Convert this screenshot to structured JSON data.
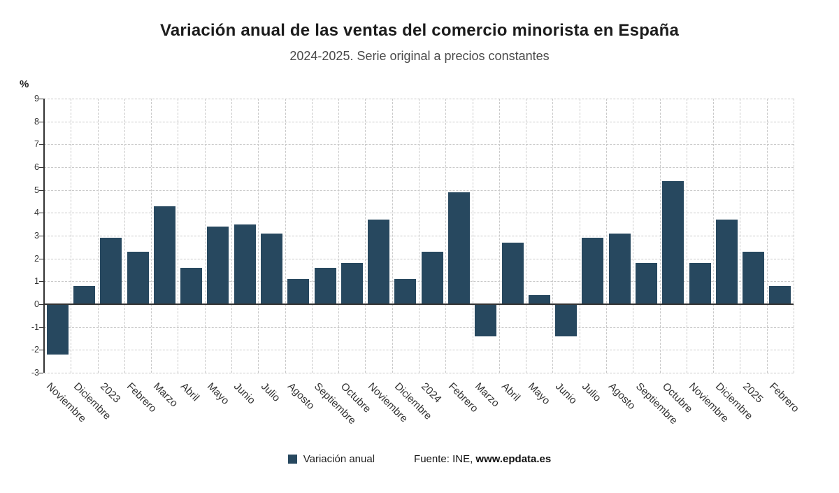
{
  "title": "Variación anual de las ventas del comercio minorista en España",
  "subtitle": "2024-2025. Serie original a precios constantes",
  "y_axis_unit": "%",
  "legend": {
    "label": "Variación anual"
  },
  "source": {
    "prefix": "Fuente: INE, ",
    "link": "www.epdata.es"
  },
  "colors": {
    "bar": "#27485f",
    "axis": "#333333",
    "grid": "#c9c9c9"
  },
  "chart_data": {
    "type": "bar",
    "title": "Variación anual de las ventas del comercio minorista en España",
    "subtitle": "2024-2025. Serie original a precios constantes",
    "xlabel": "",
    "ylabel": "%",
    "ylim": [
      -3,
      9
    ],
    "ytick_step": 1,
    "grid": "dashed",
    "legend_position": "bottom",
    "categories": [
      "Noviembre",
      "Diciembre",
      "2023",
      "Febrero",
      "Marzo",
      "Abril",
      "Mayo",
      "Junio",
      "Julio",
      "Agosto",
      "Septiembre",
      "Octubre",
      "Noviembre",
      "Diciembre",
      "2024",
      "Febrero",
      "Marzo",
      "Abril",
      "Mayo",
      "Junio",
      "Julio",
      "Agosto",
      "Septiembre",
      "Octubre",
      "Noviembre",
      "Diciembre",
      "2025",
      "Febrero"
    ],
    "values": [
      -2.2,
      0.8,
      2.9,
      2.3,
      4.3,
      1.6,
      3.4,
      3.5,
      3.1,
      1.1,
      1.6,
      1.8,
      3.7,
      1.1,
      2.3,
      4.9,
      -1.4,
      2.7,
      0.4,
      -1.4,
      2.9,
      3.1,
      1.8,
      5.4,
      1.8,
      3.7,
      2.3,
      0.8
    ]
  }
}
